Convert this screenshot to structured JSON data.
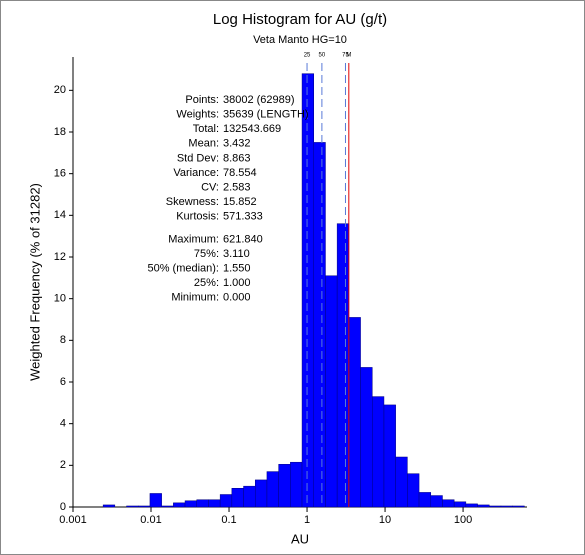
{
  "chart_data": {
    "type": "histogram",
    "title": "Log Histogram for AU (g/t)",
    "subtitle": "Veta Manto HG=10",
    "x_label": "AU",
    "y_label": "Weighted Frequency (% of 31282)",
    "log_x": true,
    "color": "#0000ff",
    "edge_color": "#000080",
    "bins": [
      0.001723,
      0.002434,
      0.003438,
      0.004856,
      0.00686,
      0.00969,
      0.01369,
      0.01933,
      0.0273,
      0.03857,
      0.05448,
      0.07695,
      0.1087,
      0.1535,
      0.2168,
      0.3062,
      0.4326,
      0.611,
      0.863,
      1.219,
      1.722,
      2.432,
      3.436,
      4.853,
      6.855,
      9.683,
      13.68,
      19.32,
      27.29,
      38.55,
      54.45,
      76.91,
      108.6,
      153.4,
      216.7,
      306.1,
      432.4,
      610.8
    ],
    "values": [
      0,
      0.1,
      0,
      0.05,
      0.05,
      0.65,
      0.05,
      0.2,
      0.3,
      0.35,
      0.35,
      0.6,
      0.9,
      1.0,
      1.3,
      1.7,
      2.05,
      2.15,
      20.8,
      17.5,
      11.1,
      13.6,
      9.1,
      6.7,
      5.3,
      4.9,
      2.4,
      1.6,
      0.7,
      0.55,
      0.35,
      0.25,
      0.15,
      0.1,
      0.05,
      0.05,
      0.05
    ],
    "xlim": [
      0.001,
      660
    ],
    "xticks": [
      0.001,
      0.01,
      0.1,
      1,
      10,
      100
    ],
    "ylim": [
      0,
      21.6
    ],
    "yticks": [
      0,
      2,
      4,
      6,
      8,
      10,
      12,
      14,
      16,
      18,
      20
    ],
    "markers": [
      {
        "label": "25",
        "value": 1.0,
        "color": "#5a7ad8",
        "dashed": true
      },
      {
        "label": "50",
        "value": 1.55,
        "color": "#5a7ad8",
        "dashed": true
      },
      {
        "label": "75",
        "value": 3.11,
        "color": "#5a7ad8",
        "dashed": true
      },
      {
        "label": "M",
        "value": 3.432,
        "color": "#e00000",
        "dashed": false
      }
    ],
    "stats": [
      {
        "label": "Points:",
        "value": "38002 (62989)",
        "color": "#000000"
      },
      {
        "label": "Weights:",
        "value": "35639 (LENGTH)",
        "color": "#000000"
      },
      {
        "label": "Total:",
        "value": "132543.669",
        "color": "#000000"
      },
      {
        "label": "Mean:",
        "value": "3.432",
        "color": "#e00000"
      },
      {
        "label": "Std Dev:",
        "value": "8.863",
        "color": "#000000"
      },
      {
        "label": "Variance:",
        "value": "78.554",
        "color": "#000000"
      },
      {
        "label": "CV:",
        "value": "2.583",
        "color": "#000000"
      },
      {
        "label": "Skewness:",
        "value": "15.852",
        "color": "#000000"
      },
      {
        "label": "Kurtosis:",
        "value": "571.333",
        "color": "#000000"
      },
      {
        "label": "Maximum:",
        "value": "621.840",
        "color": "#000000"
      },
      {
        "label": "75%:",
        "value": "3.110",
        "color": "#1010e0"
      },
      {
        "label": "50% (median):",
        "value": "1.550",
        "color": "#1010e0"
      },
      {
        "label": "25%:",
        "value": "1.000",
        "color": "#1010e0"
      },
      {
        "label": "Minimum:",
        "value": "0.000",
        "color": "#000000"
      }
    ]
  }
}
